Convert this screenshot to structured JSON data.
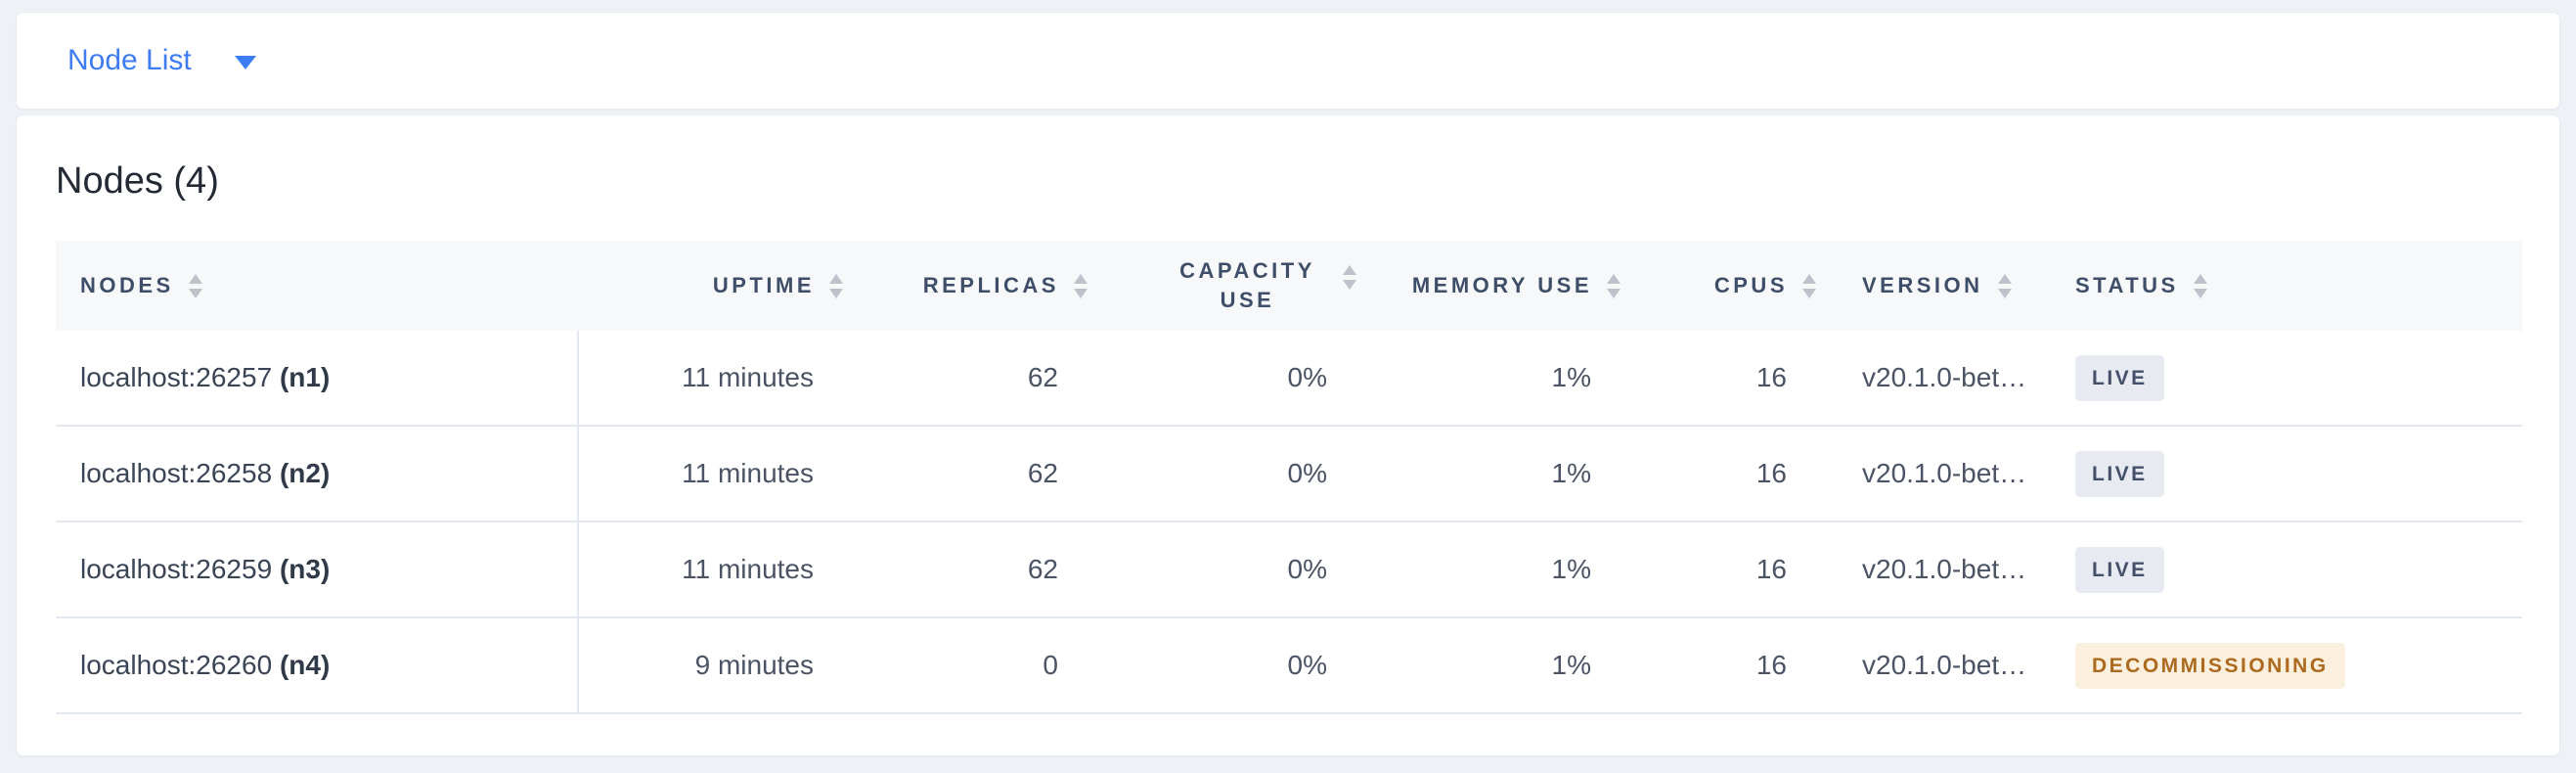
{
  "colors": {
    "accent_blue": "#3d7cf2",
    "page_bg": "#eef2f7",
    "header_text": "#3f4e68",
    "live_badge_bg": "#e7eaf1",
    "live_badge_text": "#44506a",
    "decommissioning_badge_bg": "#fbf0de",
    "decommissioning_badge_text": "#ad6a1f"
  },
  "view_selector": {
    "label": "Node List",
    "icon": "caret-down-icon"
  },
  "panel": {
    "title": "Nodes (4)",
    "table": {
      "columns": [
        {
          "key": "address",
          "label": "NODES",
          "align": "left"
        },
        {
          "key": "uptime",
          "label": "UPTIME",
          "align": "right"
        },
        {
          "key": "replicas",
          "label": "REPLICAS",
          "align": "right"
        },
        {
          "key": "capacity_use",
          "label": "CAPACITY USE",
          "align": "right",
          "wrap": true
        },
        {
          "key": "memory_use",
          "label": "MEMORY USE",
          "align": "right"
        },
        {
          "key": "cpus",
          "label": "CPUS",
          "align": "right"
        },
        {
          "key": "version",
          "label": "VERSION",
          "align": "left"
        },
        {
          "key": "status",
          "label": "STATUS",
          "align": "left"
        }
      ],
      "rows": [
        {
          "address": "localhost:26257",
          "id": "(n1)",
          "uptime": "11 minutes",
          "replicas": "62",
          "capacity_use": "0%",
          "memory_use": "1%",
          "cpus": "16",
          "version": "v20.1.0-bet…",
          "status": "LIVE",
          "status_type": "live"
        },
        {
          "address": "localhost:26258",
          "id": "(n2)",
          "uptime": "11 minutes",
          "replicas": "62",
          "capacity_use": "0%",
          "memory_use": "1%",
          "cpus": "16",
          "version": "v20.1.0-bet…",
          "status": "LIVE",
          "status_type": "live"
        },
        {
          "address": "localhost:26259",
          "id": "(n3)",
          "uptime": "11 minutes",
          "replicas": "62",
          "capacity_use": "0%",
          "memory_use": "1%",
          "cpus": "16",
          "version": "v20.1.0-bet…",
          "status": "LIVE",
          "status_type": "live"
        },
        {
          "address": "localhost:26260",
          "id": "(n4)",
          "uptime": "9 minutes",
          "replicas": "0",
          "capacity_use": "0%",
          "memory_use": "1%",
          "cpus": "16",
          "version": "v20.1.0-bet…",
          "status": "DECOMMISSIONING",
          "status_type": "decommissioning"
        }
      ]
    }
  }
}
